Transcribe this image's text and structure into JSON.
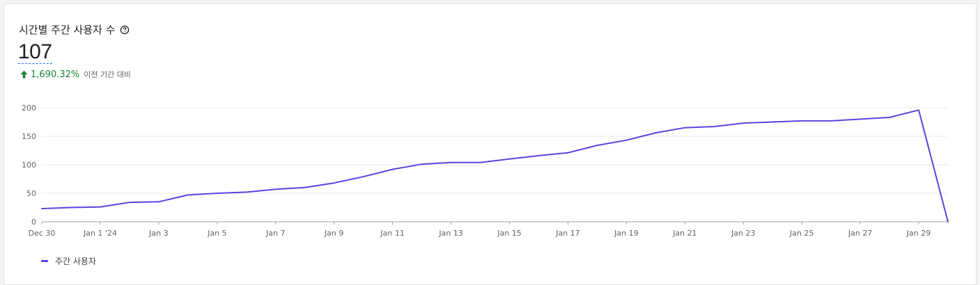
{
  "card": {
    "title": "시간별 주간 사용자 수",
    "help_icon": "help-circle-icon",
    "value": "107",
    "delta_icon": "arrow-up-icon",
    "delta": "1,690.32%",
    "delta_label": "이전 기간 대비"
  },
  "colors": {
    "series": "#6040e0",
    "delta_positive": "#188038",
    "grid": "#e8e8e8"
  },
  "chart_data": {
    "type": "line",
    "x": [
      "Dec 30",
      "Dec 31",
      "Jan 1",
      "Jan 2",
      "Jan 3",
      "Jan 4",
      "Jan 5",
      "Jan 6",
      "Jan 7",
      "Jan 8",
      "Jan 9",
      "Jan 10",
      "Jan 11",
      "Jan 12",
      "Jan 13",
      "Jan 14",
      "Jan 15",
      "Jan 16",
      "Jan 17",
      "Jan 18",
      "Jan 19",
      "Jan 20",
      "Jan 21",
      "Jan 22",
      "Jan 23",
      "Jan 24",
      "Jan 25",
      "Jan 26",
      "Jan 27",
      "Jan 28",
      "Jan 29",
      "Jan 30"
    ],
    "x_tick_labels": [
      "Dec 30",
      "Jan 1 '24",
      "Jan 3",
      "Jan 5",
      "Jan 7",
      "Jan 9",
      "Jan 11",
      "Jan 13",
      "Jan 15",
      "Jan 17",
      "Jan 19",
      "Jan 21",
      "Jan 23",
      "Jan 25",
      "Jan 27",
      "Jan 29"
    ],
    "y_ticks": [
      0,
      50,
      100,
      150,
      200
    ],
    "ylim": [
      0,
      200
    ],
    "series": [
      {
        "name": "주간 사용자",
        "values": [
          23,
          25,
          26,
          34,
          35,
          47,
          50,
          52,
          57,
          60,
          68,
          79,
          92,
          101,
          104,
          104,
          110,
          116,
          121,
          134,
          143,
          156,
          165,
          167,
          173,
          175,
          177,
          177,
          180,
          183,
          196,
          0
        ]
      }
    ],
    "grid": true,
    "legend": "bottom-left"
  }
}
